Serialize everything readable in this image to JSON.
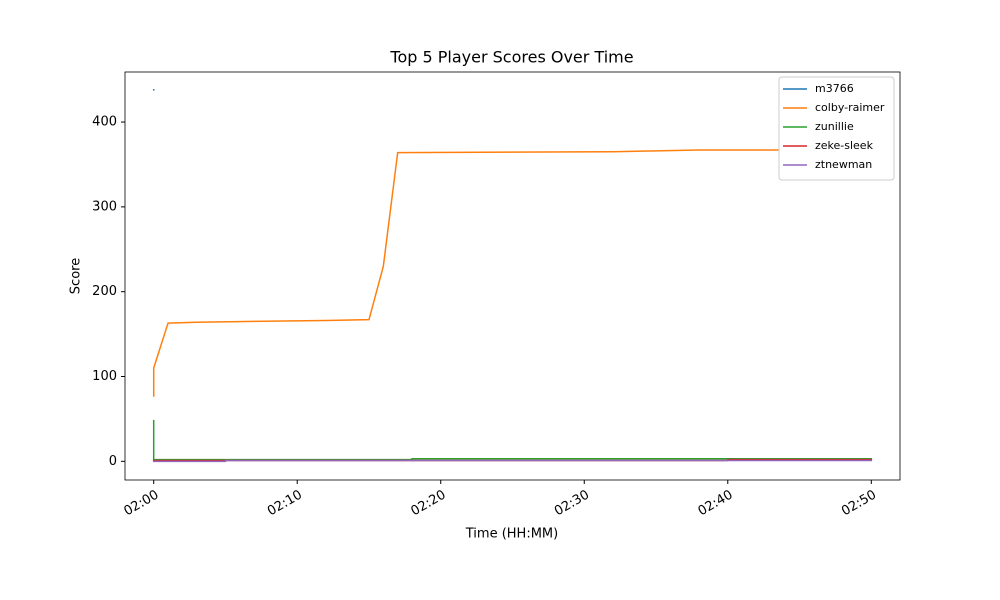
{
  "chart_data": {
    "type": "line",
    "title": "Top 5 Player Scores Over Time",
    "x_label": "Time (HH:MM)",
    "y_label": "Score",
    "xlim": [
      "01:58",
      "02:52"
    ],
    "xticks": [
      "02:00",
      "02:10",
      "02:20",
      "02:30",
      "02:40",
      "02:50"
    ],
    "ylim": [
      -22,
      459
    ],
    "yticks": [
      0,
      100,
      200,
      300,
      400
    ],
    "legend": "upper right",
    "series": [
      {
        "name": "m3766",
        "color": "#1f77b4",
        "x": [
          "02:00",
          "02:00"
        ],
        "values": [
          438,
          438
        ]
      },
      {
        "name": "colby-raimer",
        "color": "#ff7f0e",
        "x": [
          "02:00",
          "02:00",
          "02:01",
          "02:03",
          "02:07",
          "02:12",
          "02:15",
          "02:16",
          "02:17",
          "02:32",
          "02:35",
          "02:38",
          "02:50"
        ],
        "values": [
          77,
          110,
          163,
          164,
          165,
          166,
          167,
          230,
          364,
          365,
          366,
          367,
          367
        ]
      },
      {
        "name": "zunillie",
        "color": "#2ca02c",
        "x": [
          "02:00",
          "02:00",
          "02:18",
          "02:18",
          "02:50"
        ],
        "values": [
          48,
          2,
          2,
          3,
          3
        ]
      },
      {
        "name": "zeke-sleek",
        "color": "#d62728",
        "x": [
          "02:00",
          "02:40",
          "02:40",
          "02:50"
        ],
        "values": [
          1,
          1,
          2,
          2
        ]
      },
      {
        "name": "ztnewman",
        "color": "#9467bd",
        "x": [
          "02:00",
          "02:05",
          "02:05",
          "02:50"
        ],
        "values": [
          0,
          0,
          1,
          1
        ]
      }
    ]
  }
}
